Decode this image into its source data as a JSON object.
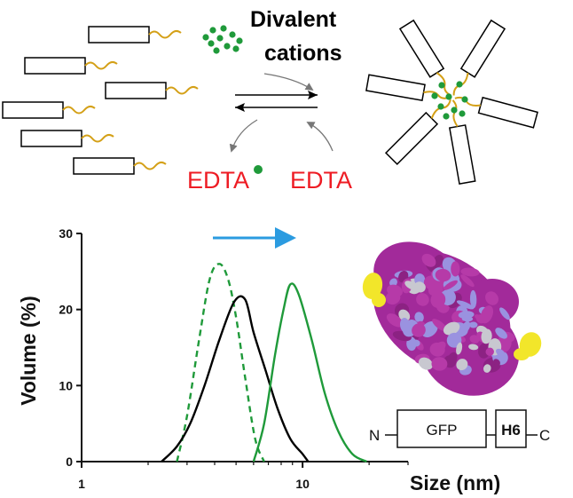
{
  "scheme": {
    "cation_label_line1": "Divalent",
    "cation_label_line2": "cations",
    "edta_bound_label": "EDTA",
    "edta_free_label": "EDTA",
    "colors": {
      "tail": "#d4a017",
      "cation": "#1f9a3a",
      "edta": "#ee1c24",
      "arrow": "#000000"
    }
  },
  "chart_data": {
    "type": "line",
    "x_scale": "log",
    "xlabel": "Size (nm)",
    "ylabel": "Volume (%)",
    "xlim": [
      1,
      30
    ],
    "ylim": [
      0,
      30
    ],
    "x_ticks": [
      1,
      10
    ],
    "y_ticks": [
      0,
      10,
      20,
      30
    ],
    "shift_arrow_color": "#2b9be0",
    "series": [
      {
        "style": "dashed",
        "color": "#1f9a3a",
        "x": [
          2.7,
          3.0,
          3.4,
          3.8,
          4.2,
          4.6,
          5.0,
          5.5,
          6.1,
          6.7
        ],
        "y": [
          0,
          6,
          16,
          24,
          26,
          24,
          19,
          11,
          3,
          0
        ]
      },
      {
        "style": "solid",
        "color": "#000000",
        "x": [
          2.3,
          2.7,
          3.1,
          3.6,
          4.2,
          4.9,
          5.5,
          6.0,
          6.8,
          7.7,
          8.8,
          10.0,
          10.6
        ],
        "y": [
          0,
          2,
          5,
          10,
          16,
          21,
          21.3,
          17,
          12,
          7,
          3,
          1,
          0
        ]
      },
      {
        "style": "solid",
        "color": "#1f9a3a",
        "x": [
          6.0,
          6.7,
          7.5,
          8.2,
          8.8,
          9.6,
          11.0,
          12.6,
          14.5,
          16.8,
          19.5
        ],
        "y": [
          0,
          5,
          14,
          20,
          23.3,
          22,
          16,
          9,
          4,
          1,
          0
        ]
      }
    ]
  },
  "construct": {
    "n_label": "N",
    "gfp_label": "GFP",
    "tag_label": "H6",
    "c_label": "C",
    "tag_color": "#d4a017"
  },
  "protein": {
    "colors": {
      "surface": "#a22a9a",
      "patch": "#9a92e0",
      "light": "#c8c8d0",
      "his": "#f2e62a"
    }
  }
}
